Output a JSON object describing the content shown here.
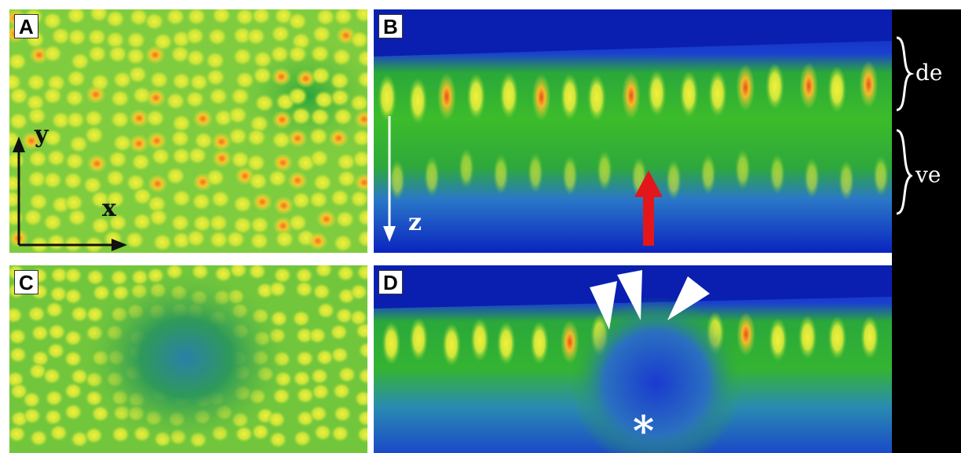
{
  "panels": {
    "a": {
      "label": "A",
      "axis_y": "y",
      "axis_x": "x"
    },
    "b": {
      "label": "B",
      "axis_z": "z"
    },
    "c": {
      "label": "C"
    },
    "d": {
      "label": "D",
      "asterisk": "*"
    }
  },
  "side_labels": {
    "top": "de",
    "bottom": "ve"
  },
  "colors": {
    "deep_blue": "#0a1fb0",
    "green": "#2fb32b",
    "yellow": "#e6ea2a",
    "orange": "#f08a1e",
    "red_arrow": "#e3171b",
    "background": "#000000"
  }
}
